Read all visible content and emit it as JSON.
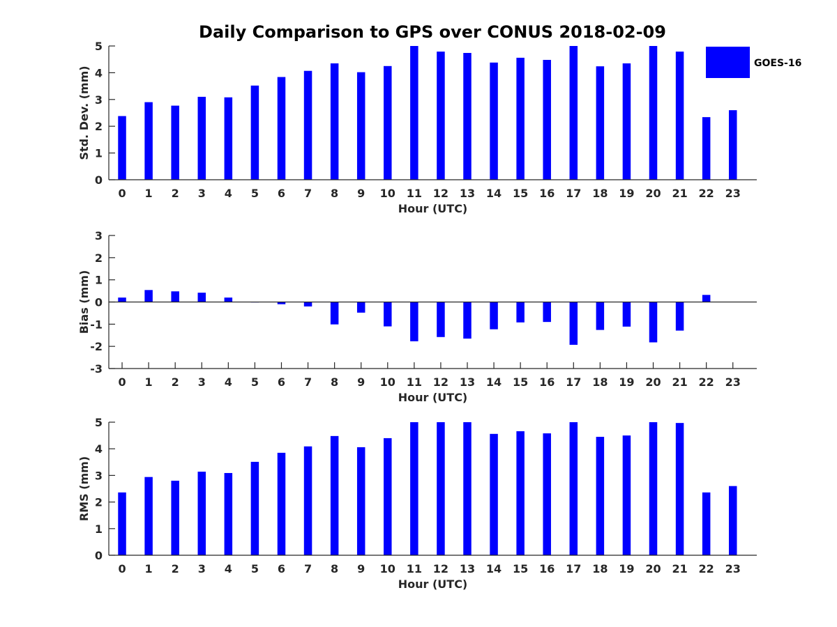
{
  "chart_data": [
    {
      "type": "bar",
      "title": "Daily Comparison to GPS over CONUS 2018-02-09",
      "xlabel": "Hour (UTC)",
      "ylabel": "Std. Dev. (mm)",
      "categories": [
        "0",
        "1",
        "2",
        "3",
        "4",
        "5",
        "6",
        "7",
        "8",
        "9",
        "10",
        "11",
        "12",
        "13",
        "14",
        "15",
        "16",
        "17",
        "18",
        "19",
        "20",
        "21",
        "22",
        "23"
      ],
      "series": [
        {
          "name": "GOES-16",
          "color": "#0000ff",
          "values": [
            2.38,
            2.9,
            2.77,
            3.1,
            3.08,
            3.52,
            3.84,
            4.07,
            4.35,
            4.02,
            4.25,
            5.0,
            4.79,
            4.74,
            4.38,
            4.56,
            4.48,
            5.0,
            4.24,
            4.35,
            5.0,
            4.79,
            2.34,
            2.6
          ]
        }
      ],
      "ylim": [
        0,
        5
      ],
      "yticks": [
        "0",
        "1",
        "2",
        "3",
        "4",
        "5"
      ],
      "xlim": [
        -0.5,
        23.9
      ],
      "grid": false,
      "legend": {
        "entries": [
          "GOES-16"
        ],
        "placement": "top-right outside"
      }
    },
    {
      "type": "bar",
      "title": "",
      "xlabel": "Hour (UTC)",
      "ylabel": "Bias (mm)",
      "categories": [
        "0",
        "1",
        "2",
        "3",
        "4",
        "5",
        "6",
        "7",
        "8",
        "9",
        "10",
        "11",
        "12",
        "13",
        "14",
        "15",
        "16",
        "17",
        "18",
        "19",
        "20",
        "21",
        "22",
        "23"
      ],
      "series": [
        {
          "name": "GOES-16",
          "color": "#0000ff",
          "values": [
            0.2,
            0.54,
            0.48,
            0.42,
            0.2,
            -0.02,
            -0.1,
            -0.2,
            -1.01,
            -0.48,
            -1.1,
            -1.77,
            -1.58,
            -1.65,
            -1.23,
            -0.92,
            -0.9,
            -1.93,
            -1.26,
            -1.11,
            -1.82,
            -1.29,
            0.32,
            0.0
          ]
        }
      ],
      "ylim": [
        -3,
        3
      ],
      "yticks": [
        "-3",
        "-2",
        "-1",
        "0",
        "1",
        "2",
        "3"
      ],
      "xlim": [
        -0.5,
        23.9
      ],
      "grid": false,
      "zero_line": true
    },
    {
      "type": "bar",
      "title": "",
      "xlabel": "Hour (UTC)",
      "ylabel": "RMS (mm)",
      "categories": [
        "0",
        "1",
        "2",
        "3",
        "4",
        "5",
        "6",
        "7",
        "8",
        "9",
        "10",
        "11",
        "12",
        "13",
        "14",
        "15",
        "16",
        "17",
        "18",
        "19",
        "20",
        "21",
        "22",
        "23"
      ],
      "series": [
        {
          "name": "GOES-16",
          "color": "#0000ff",
          "values": [
            2.36,
            2.94,
            2.8,
            3.14,
            3.09,
            3.51,
            3.85,
            4.09,
            4.48,
            4.06,
            4.4,
            5.0,
            5.0,
            5.0,
            4.56,
            4.66,
            4.58,
            5.0,
            4.45,
            4.5,
            5.0,
            4.97,
            2.36,
            2.6
          ]
        }
      ],
      "ylim": [
        0,
        5
      ],
      "yticks": [
        "0",
        "1",
        "2",
        "3",
        "4",
        "5"
      ],
      "xlim": [
        -0.5,
        23.9
      ],
      "grid": false
    }
  ],
  "figure": {
    "title": "Daily Comparison to GPS over CONUS 2018-02-09",
    "legend_label": "GOES-16",
    "bar_color": "#0000ff"
  }
}
